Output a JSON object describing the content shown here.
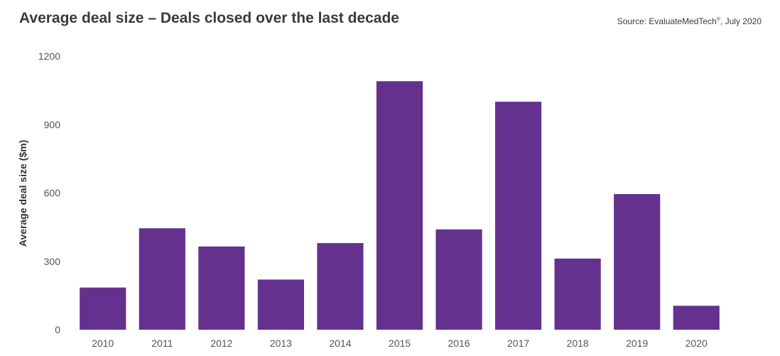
{
  "header": {
    "source_prefix": "Source: EvaluateMedTech",
    "source_mark": "®",
    "source_suffix": ", July 2020"
  },
  "chart_data": {
    "type": "bar",
    "title": "Average deal size – Deals closed over the last decade",
    "xlabel": "",
    "ylabel": "Average deal size ($m)",
    "categories": [
      "2010",
      "2011",
      "2012",
      "2013",
      "2014",
      "2015",
      "2016",
      "2017",
      "2018",
      "2019",
      "2020"
    ],
    "values": [
      185,
      445,
      365,
      220,
      380,
      1090,
      440,
      1000,
      312,
      595,
      105
    ],
    "ylim": [
      0,
      1200
    ],
    "yticks": [
      0,
      300,
      600,
      900,
      1200
    ],
    "bar_color": "#64318f",
    "grid": false,
    "legend": "none"
  }
}
